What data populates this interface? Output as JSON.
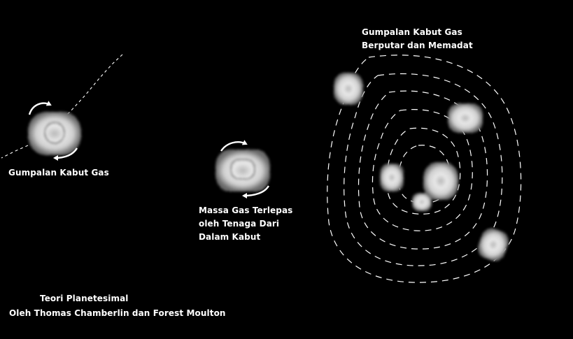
{
  "labels": {
    "left_clump": "Gumpalan Kabut Gas",
    "middle_mass": [
      "Massa Gas Terlepas",
      "oleh Tenaga Dari",
      "Dalam Kabut"
    ],
    "right_clump": [
      "Gumpalan Kabut Gas",
      "Berputar dan Memadat"
    ]
  },
  "caption": {
    "title": "Teori Planetesimal",
    "authors": "Oleh Thomas Chamberlin dan Forest Moulton"
  },
  "colors": {
    "background": "#000000",
    "text": "#ffffff",
    "lines": "#ffffff"
  }
}
